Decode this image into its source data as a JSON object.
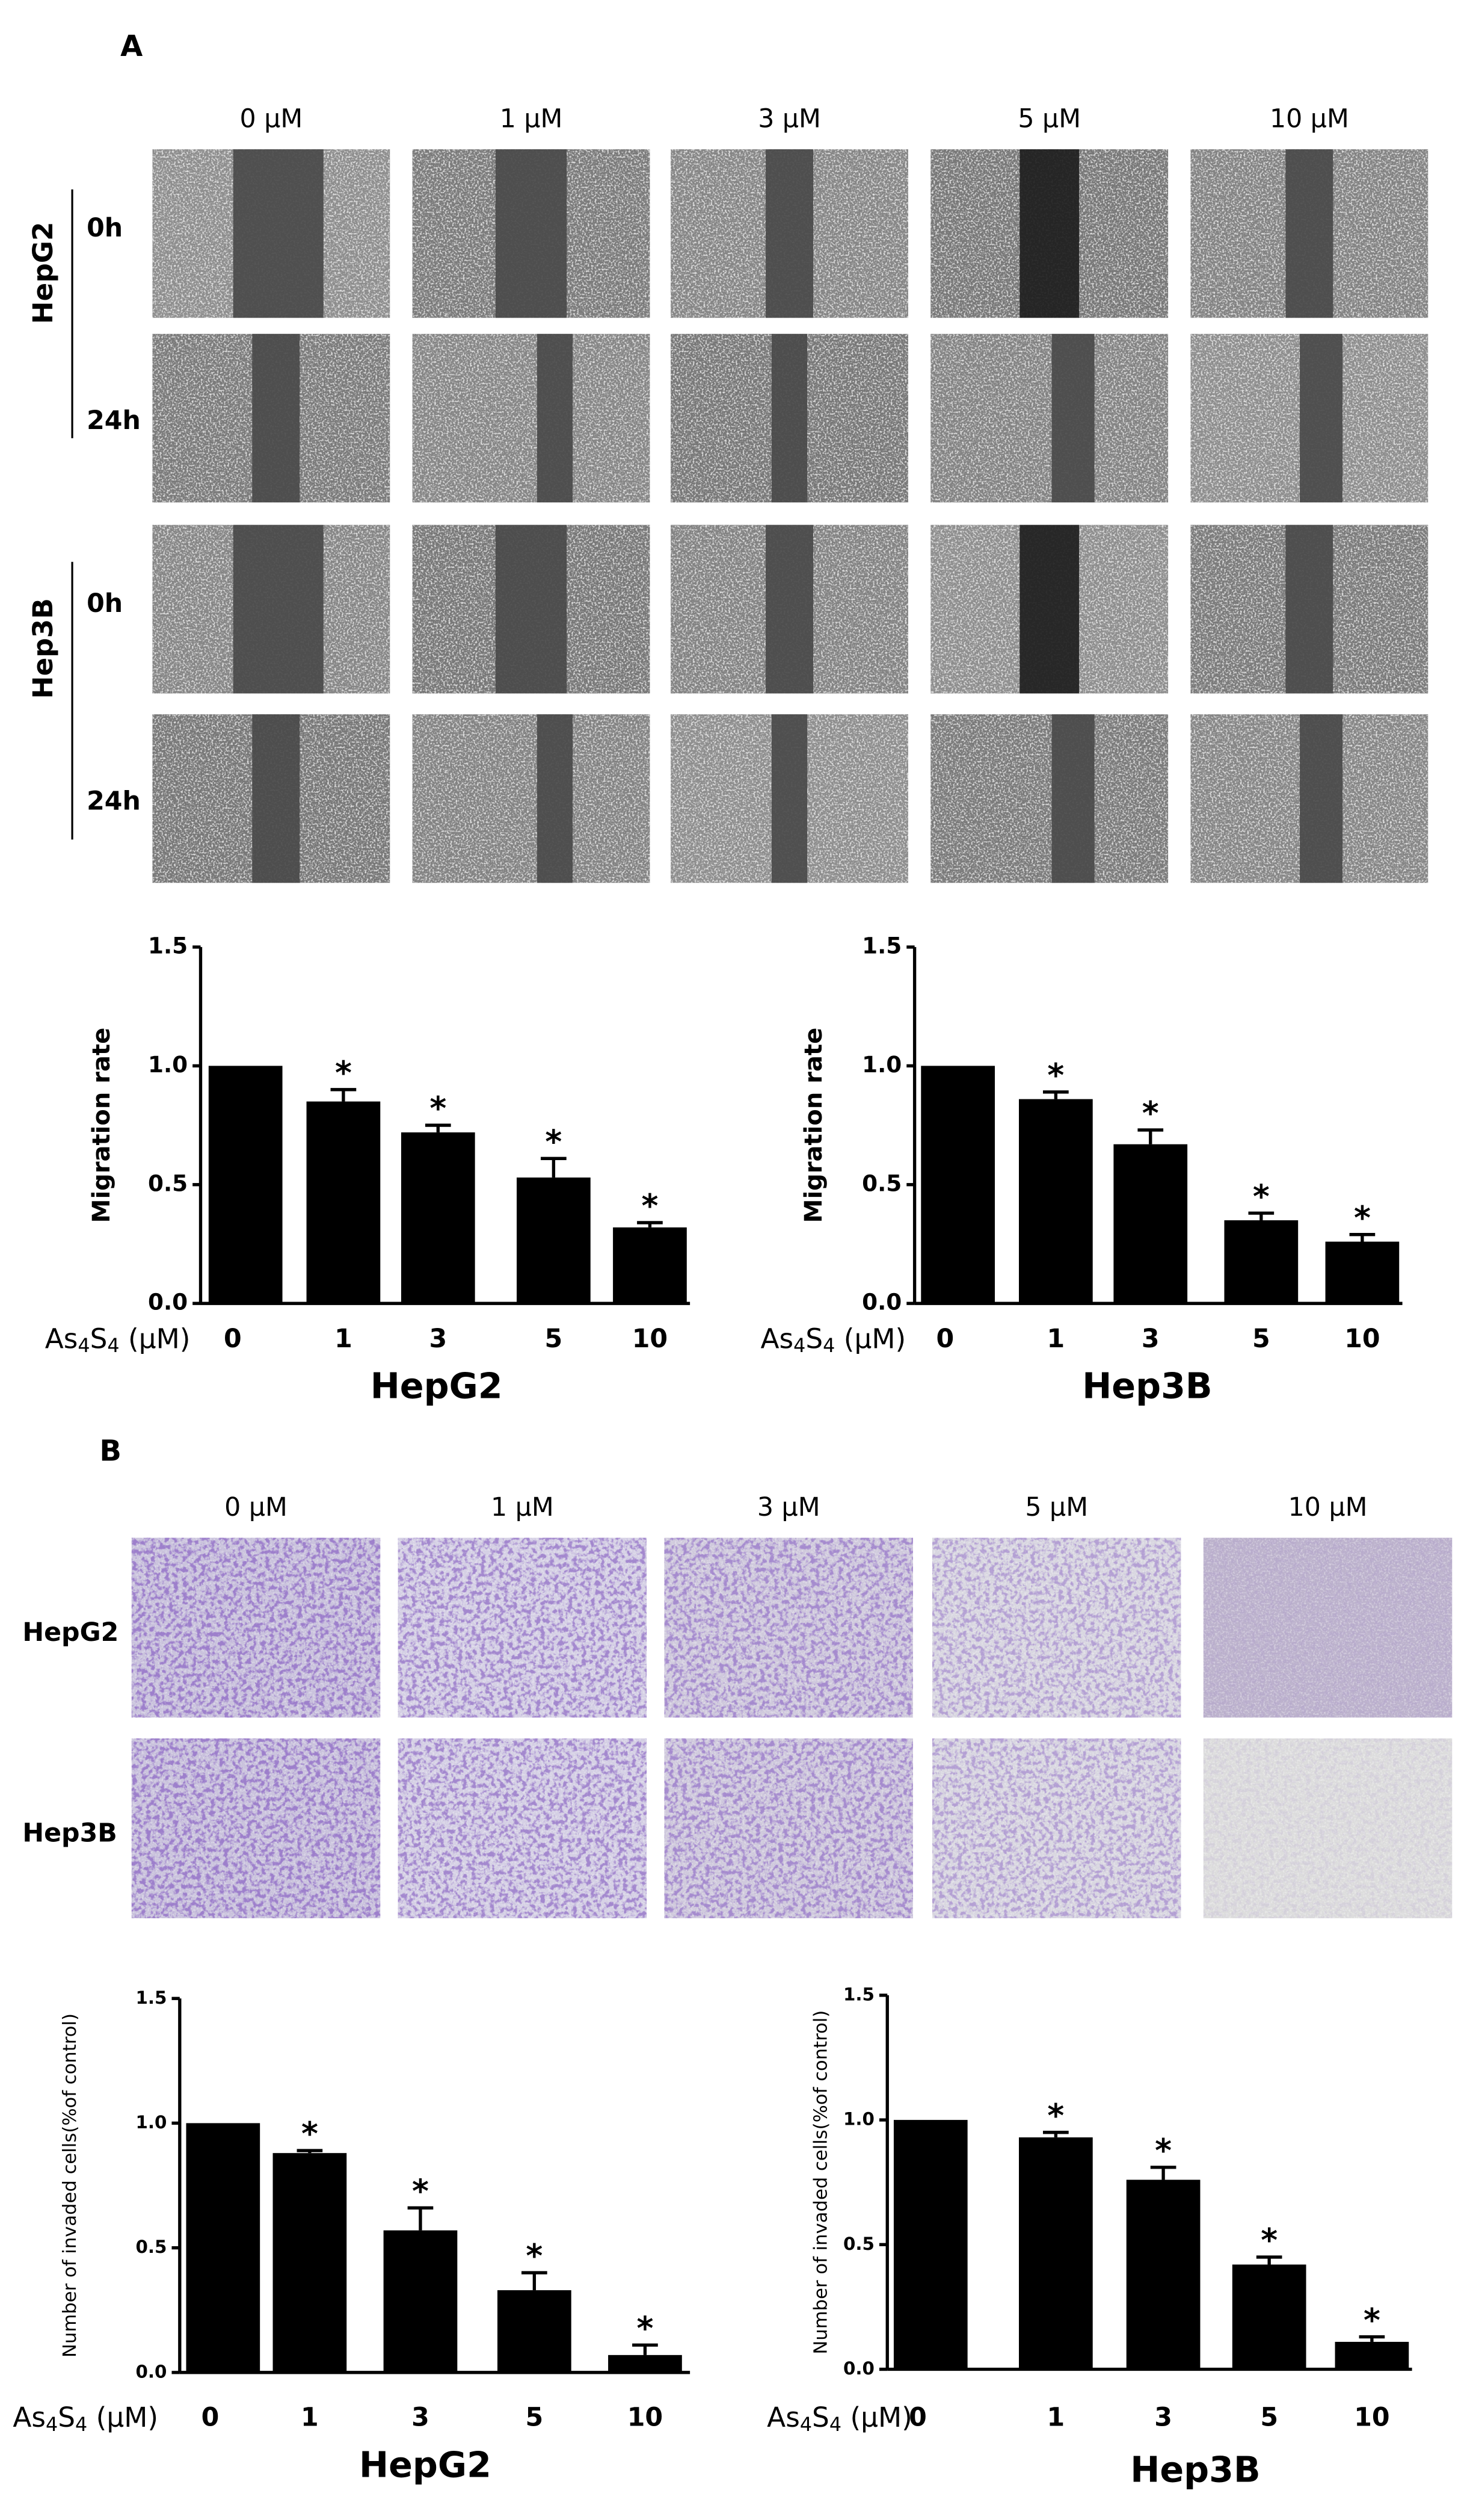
{
  "panels": {
    "A": {
      "label": "A",
      "columns": [
        "0 μM",
        "1 μM",
        "3 μM",
        "5 μM",
        "10 μM"
      ],
      "rows": [
        {
          "cell_line": "HepG2",
          "times": [
            "0h",
            "24h"
          ]
        },
        {
          "cell_line": "Hep3B",
          "times": [
            "0h",
            "24h"
          ]
        }
      ]
    },
    "B": {
      "label": "B",
      "columns": [
        "0 μM",
        "1 μM",
        "3 μM",
        "5 μM",
        "10 μM"
      ],
      "rows": [
        "HepG2",
        "Hep3B"
      ]
    }
  },
  "chart_data": [
    {
      "type": "bar",
      "title": "HepG2",
      "ylabel": "Migration rate",
      "xlabel": "As4S4 (μM)",
      "categories": [
        "0",
        "1",
        "3",
        "5",
        "10"
      ],
      "values": [
        1.0,
        0.85,
        0.72,
        0.53,
        0.32
      ],
      "errors": [
        0,
        0.05,
        0.03,
        0.08,
        0.02
      ],
      "significance": [
        null,
        "*",
        "*",
        "*",
        "*"
      ],
      "color": "#000000",
      "ylim": [
        0,
        1.5
      ],
      "yticks": [
        {
          "value": 0,
          "label": "0.0"
        },
        0.5,
        {
          "value": 1,
          "label": "1.0"
        },
        1.5
      ]
    },
    {
      "type": "bar",
      "title": "Hep3B",
      "ylabel": "Migration rate",
      "xlabel": "As4S4 (μM)",
      "categories": [
        "0",
        "1",
        "3",
        "5",
        "10"
      ],
      "values": [
        1.0,
        0.86,
        0.67,
        0.35,
        0.26
      ],
      "errors": [
        0,
        0.03,
        0.06,
        0.03,
        0.03
      ],
      "significance": [
        null,
        "*",
        "*",
        "*",
        "*"
      ],
      "color": "#000000",
      "ylim": [
        0,
        1.5
      ],
      "yticks": [
        {
          "value": 0,
          "label": "0.0"
        },
        0.5,
        {
          "value": 1,
          "label": "1.0"
        },
        1.5
      ]
    },
    {
      "type": "bar",
      "title": "HepG2",
      "ylabel": "Number of invaded cells(%of control)",
      "xlabel": "As4S4 (μM)",
      "categories": [
        "0",
        "1",
        "3",
        "5",
        "10"
      ],
      "values": [
        1.0,
        0.88,
        0.57,
        0.33,
        0.07
      ],
      "errors": [
        0,
        0.01,
        0.09,
        0.07,
        0.04
      ],
      "significance": [
        null,
        "*",
        "*",
        "*",
        "*"
      ],
      "color": "#000000",
      "ylim": [
        0,
        1.5
      ],
      "yticks": [
        {
          "value": 0,
          "label": "0.0"
        },
        0.5,
        {
          "value": 1,
          "label": "1.0"
        },
        1.5
      ]
    },
    {
      "type": "bar",
      "title": "Hep3B",
      "ylabel": "Number of invaded cells(%of control)",
      "xlabel": "As4S4 (μM)",
      "categories": [
        "0",
        "1",
        "3",
        "5",
        "10"
      ],
      "values": [
        1.0,
        0.93,
        0.76,
        0.42,
        0.11
      ],
      "errors": [
        0,
        0.02,
        0.05,
        0.03,
        0.02
      ],
      "significance": [
        null,
        "*",
        "*",
        "*",
        "*"
      ],
      "color": "#000000",
      "ylim": [
        0,
        1.5
      ],
      "yticks": [
        {
          "value": 0,
          "label": "0.0"
        },
        0.5,
        {
          "value": 1,
          "label": "1.0"
        },
        1.5
      ]
    }
  ]
}
